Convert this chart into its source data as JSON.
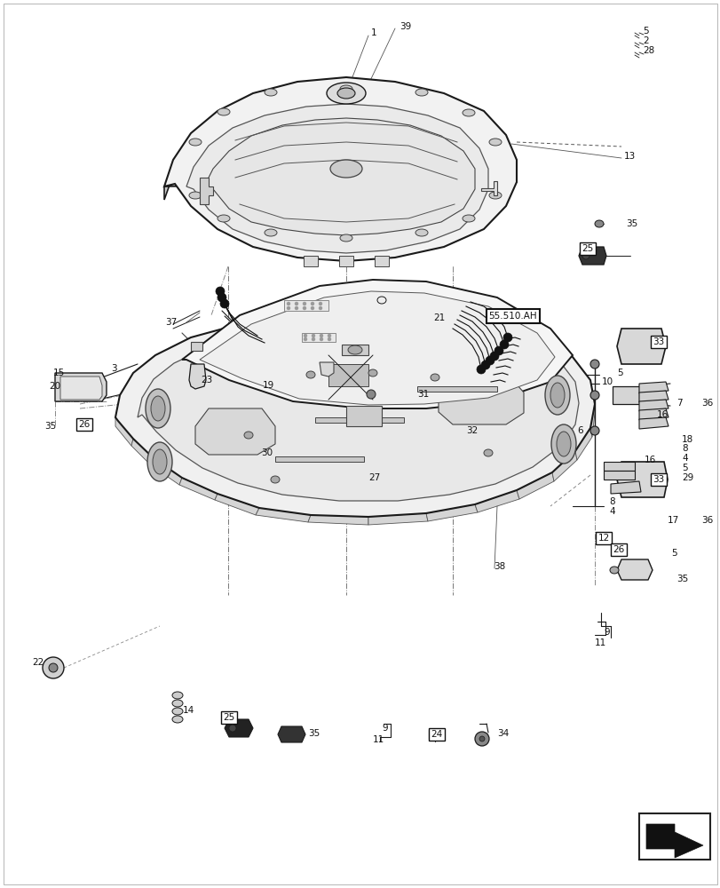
{
  "bg_color": "#ffffff",
  "fig_width": 8.12,
  "fig_height": 10.0,
  "dpi": 100,
  "line_color": "#1a1a1a",
  "light_gray": "#e8e8e8",
  "mid_gray": "#c8c8c8",
  "dark_gray": "#888888"
}
